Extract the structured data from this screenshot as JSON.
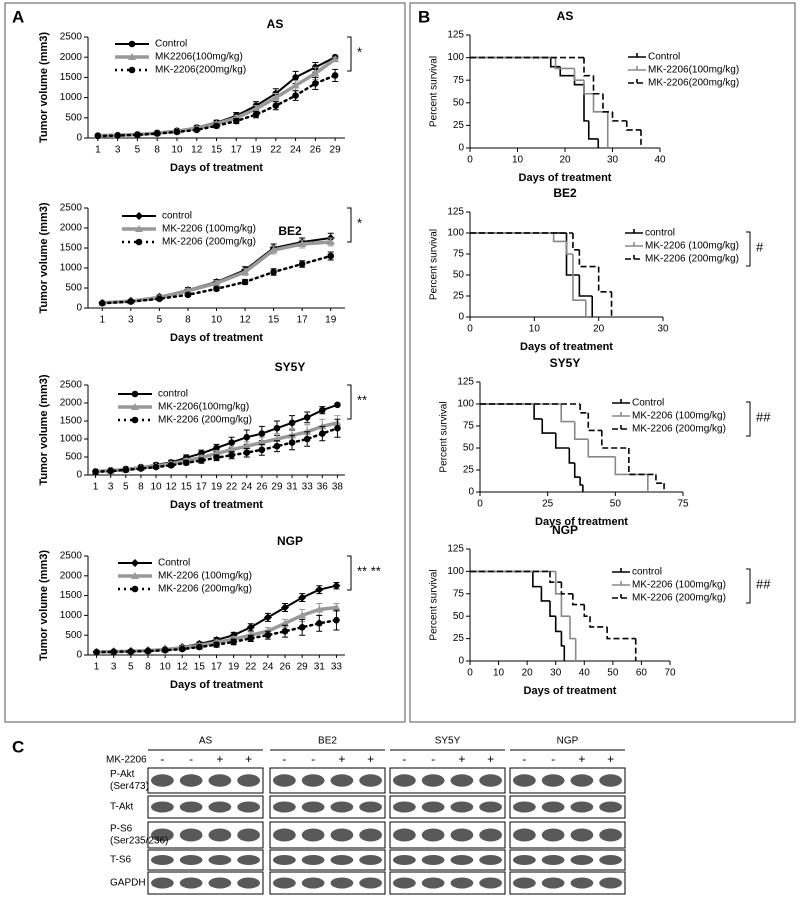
{
  "panel_labels": [
    "A",
    "B",
    "C"
  ],
  "chart_data": [
    {
      "type": "line",
      "title": "AS",
      "x_label": "Days of  treatment",
      "y_label": "Tumor volume (mm3)",
      "annotation": "*",
      "categories": [
        1,
        3,
        5,
        8,
        10,
        12,
        15,
        17,
        19,
        22,
        24,
        26,
        29
      ],
      "ylim": [
        0,
        2500
      ],
      "yticks": [
        0,
        500,
        1000,
        1500,
        2000,
        2500
      ],
      "series": [
        {
          "name": "Control",
          "color": "#000000",
          "style": "solid",
          "marker": "circle",
          "values": [
            60,
            70,
            90,
            130,
            180,
            260,
            380,
            550,
            800,
            1100,
            1500,
            1750,
            2000
          ],
          "errors": [
            10,
            10,
            15,
            20,
            25,
            40,
            60,
            80,
            100,
            120,
            150,
            120,
            30
          ]
        },
        {
          "name": "MK2206(100mg/kg)",
          "color": "#999999",
          "style": "thick",
          "marker": "triangle",
          "values": [
            60,
            70,
            85,
            120,
            170,
            240,
            350,
            500,
            720,
            1000,
            1300,
            1600,
            1950
          ],
          "errors": [
            10,
            10,
            15,
            20,
            25,
            35,
            50,
            60,
            80,
            100,
            120,
            150,
            50
          ]
        },
        {
          "name": "MK-2206(200mg/kg)",
          "color": "#000000",
          "style": "dotted",
          "marker": "circle",
          "values": [
            50,
            60,
            80,
            110,
            150,
            200,
            300,
            420,
            580,
            800,
            1050,
            1350,
            1550
          ],
          "errors": [
            10,
            10,
            15,
            20,
            25,
            30,
            50,
            60,
            80,
            100,
            120,
            150,
            150
          ]
        }
      ]
    },
    {
      "type": "line",
      "title": "BE2",
      "x_label": "Days of treatment",
      "y_label": "Tumor volume (mm3)",
      "annotation": "*",
      "categories": [
        1,
        3,
        5,
        8,
        10,
        12,
        15,
        17,
        19
      ],
      "ylim": [
        0,
        2500
      ],
      "yticks": [
        0,
        500,
        1000,
        1500,
        2000,
        2500
      ],
      "series": [
        {
          "name": "control",
          "color": "#000000",
          "style": "solid",
          "marker": "diamond",
          "values": [
            130,
            180,
            280,
            450,
            650,
            950,
            1500,
            1650,
            1750
          ],
          "errors": [
            20,
            30,
            40,
            60,
            60,
            80,
            100,
            100,
            120
          ]
        },
        {
          "name": "MK-2206 (100mg/kg)",
          "color": "#999999",
          "style": "thick",
          "marker": "triangle",
          "values": [
            130,
            170,
            260,
            430,
            620,
            900,
            1450,
            1600,
            1650
          ],
          "errors": [
            20,
            30,
            40,
            50,
            60,
            80,
            100,
            100,
            100
          ]
        },
        {
          "name": "MK-2206 (200mg/kg)",
          "color": "#000000",
          "style": "dotted",
          "marker": "circle",
          "values": [
            120,
            160,
            230,
            330,
            480,
            650,
            900,
            1100,
            1300
          ],
          "errors": [
            20,
            30,
            30,
            40,
            50,
            60,
            80,
            80,
            100
          ]
        }
      ]
    },
    {
      "type": "line",
      "title": "SY5Y",
      "x_label": "Days of treatment",
      "y_label": "Tumor volume (mm3)",
      "annotation": "**",
      "categories": [
        1,
        3,
        5,
        8,
        10,
        12,
        15,
        17,
        19,
        22,
        24,
        26,
        29,
        31,
        33,
        36,
        38
      ],
      "ylim": [
        0,
        2500
      ],
      "yticks": [
        0,
        500,
        1000,
        1500,
        2000,
        2500
      ],
      "series": [
        {
          "name": "control",
          "color": "#000000",
          "style": "solid",
          "marker": "circle",
          "values": [
            100,
            130,
            170,
            220,
            280,
            350,
            480,
            600,
            750,
            900,
            1050,
            1150,
            1300,
            1450,
            1600,
            1800,
            1950
          ],
          "errors": [
            20,
            30,
            30,
            40,
            50,
            60,
            80,
            90,
            100,
            150,
            200,
            200,
            200,
            200,
            150,
            100,
            30
          ]
        },
        {
          "name": "MK-2206(100mg/kg)",
          "color": "#999999",
          "style": "thick",
          "marker": "triangle",
          "values": [
            100,
            120,
            150,
            200,
            250,
            310,
            400,
            480,
            600,
            700,
            800,
            900,
            1000,
            1100,
            1200,
            1350,
            1450
          ],
          "errors": [
            20,
            20,
            30,
            30,
            40,
            50,
            60,
            70,
            80,
            100,
            120,
            150,
            150,
            200,
            200,
            200,
            200
          ]
        },
        {
          "name": "MK-2206 (200mg/kg)",
          "color": "#000000",
          "style": "dotted",
          "marker": "circle",
          "values": [
            90,
            110,
            140,
            180,
            220,
            270,
            340,
            400,
            480,
            550,
            620,
            700,
            800,
            900,
            1000,
            1150,
            1300
          ],
          "errors": [
            20,
            20,
            30,
            30,
            40,
            50,
            60,
            70,
            80,
            100,
            120,
            150,
            150,
            200,
            200,
            200,
            250
          ]
        }
      ]
    },
    {
      "type": "line",
      "title": "NGP",
      "x_label": "Days of  treatment",
      "y_label": "Tumor volume (mm3)",
      "annotation": "** **",
      "categories": [
        1,
        3,
        5,
        8,
        10,
        12,
        15,
        17,
        19,
        22,
        24,
        26,
        29,
        31,
        33
      ],
      "ylim": [
        0,
        2500
      ],
      "yticks": [
        0,
        500,
        1000,
        1500,
        2000,
        2500
      ],
      "series": [
        {
          "name": "Control",
          "color": "#000000",
          "style": "solid",
          "marker": "diamond",
          "values": [
            80,
            90,
            100,
            120,
            150,
            200,
            280,
            380,
            500,
            700,
            950,
            1200,
            1450,
            1650,
            1750
          ],
          "errors": [
            20,
            20,
            20,
            20,
            30,
            40,
            50,
            60,
            70,
            90,
            100,
            100,
            100,
            100,
            80
          ]
        },
        {
          "name": "MK-2206 (100mg/kg)",
          "color": "#999999",
          "style": "thick",
          "marker": "triangle",
          "values": [
            80,
            85,
            95,
            110,
            140,
            180,
            240,
            320,
            400,
            500,
            600,
            800,
            1000,
            1150,
            1200
          ],
          "errors": [
            20,
            20,
            20,
            20,
            30,
            40,
            50,
            60,
            70,
            80,
            90,
            100,
            150,
            150,
            100
          ]
        },
        {
          "name": "MK-2206 (200mg/kg)",
          "color": "#000000",
          "style": "dotted",
          "marker": "circle",
          "values": [
            70,
            80,
            90,
            100,
            120,
            150,
            200,
            260,
            330,
            420,
            500,
            600,
            700,
            800,
            880
          ],
          "errors": [
            20,
            20,
            20,
            20,
            30,
            40,
            50,
            60,
            70,
            80,
            100,
            150,
            200,
            200,
            250
          ]
        }
      ]
    },
    {
      "type": "step",
      "title": "AS",
      "x_label": "Days of treatment",
      "y_label": "Percent survival",
      "xlim": [
        0,
        40
      ],
      "xticks": [
        0,
        10,
        20,
        30,
        40
      ],
      "ylim": [
        0,
        125
      ],
      "yticks": [
        0,
        25,
        50,
        75,
        100,
        125
      ],
      "series": [
        {
          "name": "Control",
          "color": "#000000",
          "style": "solid",
          "x": [
            0,
            17,
            19,
            22,
            24,
            25,
            27
          ],
          "values": [
            100,
            90,
            80,
            70,
            30,
            10,
            0
          ]
        },
        {
          "name": "MK-2206(100mg/kg)",
          "color": "#888888",
          "style": "solid",
          "x": [
            0,
            18,
            22,
            24,
            26,
            29
          ],
          "values": [
            100,
            88,
            75,
            60,
            40,
            0
          ]
        },
        {
          "name": "MK-2206(200mg/kg)",
          "color": "#000000",
          "style": "dashed",
          "x": [
            0,
            24,
            26,
            28,
            30,
            33,
            36
          ],
          "values": [
            100,
            80,
            60,
            40,
            30,
            20,
            0
          ]
        }
      ]
    },
    {
      "type": "step",
      "title": "BE2",
      "x_label": "Days of treatment",
      "y_label": "Percent survival",
      "annotation": "#",
      "xlim": [
        0,
        30
      ],
      "xticks": [
        0,
        10,
        20,
        30
      ],
      "ylim": [
        0,
        125
      ],
      "yticks": [
        0,
        25,
        50,
        75,
        100,
        125
      ],
      "series": [
        {
          "name": "control",
          "color": "#000000",
          "style": "solid",
          "x": [
            0,
            15,
            17,
            19
          ],
          "values": [
            100,
            50,
            25,
            0
          ]
        },
        {
          "name": "MK-2206 (100mg/kg)",
          "color": "#888888",
          "style": "solid",
          "x": [
            0,
            13,
            15,
            16,
            18
          ],
          "values": [
            100,
            90,
            75,
            20,
            0
          ]
        },
        {
          "name": "MK-2206 (200mg/kg)",
          "color": "#000000",
          "style": "dashed",
          "x": [
            0,
            16,
            17,
            20,
            22
          ],
          "values": [
            100,
            80,
            60,
            30,
            0
          ]
        }
      ]
    },
    {
      "type": "step",
      "title": "SY5Y",
      "x_label": "Days of treatment",
      "y_label": "Percent survival",
      "annotation": "##",
      "xlim": [
        0,
        75
      ],
      "xticks": [
        0,
        25,
        50,
        75
      ],
      "ylim": [
        0,
        125
      ],
      "yticks": [
        0,
        25,
        50,
        75,
        100,
        125
      ],
      "series": [
        {
          "name": "Control",
          "color": "#000000",
          "style": "solid",
          "x": [
            0,
            20,
            23,
            28,
            33,
            35,
            37,
            38
          ],
          "values": [
            100,
            83,
            67,
            50,
            33,
            17,
            8,
            0
          ]
        },
        {
          "name": "MK-2206 (100mg/kg)",
          "color": "#888888",
          "style": "solid",
          "x": [
            0,
            30,
            35,
            40,
            50,
            62
          ],
          "values": [
            100,
            80,
            60,
            40,
            20,
            0
          ]
        },
        {
          "name": "MK-2206 (200mg/kg)",
          "color": "#000000",
          "style": "dashed",
          "x": [
            0,
            37,
            40,
            45,
            55,
            65,
            68
          ],
          "values": [
            100,
            90,
            70,
            50,
            20,
            10,
            0
          ]
        }
      ]
    },
    {
      "type": "step",
      "title": "NGP",
      "x_label": "Days of treatment",
      "y_label": "Percent survival",
      "annotation": "##",
      "xlim": [
        0,
        70
      ],
      "xticks": [
        0,
        10,
        20,
        30,
        40,
        50,
        60,
        70
      ],
      "ylim": [
        0,
        125
      ],
      "yticks": [
        0,
        25,
        50,
        75,
        100,
        125
      ],
      "series": [
        {
          "name": "control",
          "color": "#000000",
          "style": "solid",
          "x": [
            0,
            22,
            25,
            28,
            30,
            32,
            33
          ],
          "values": [
            100,
            83,
            67,
            50,
            33,
            17,
            0
          ]
        },
        {
          "name": "MK-2206 (100mg/kg)",
          "color": "#888888",
          "style": "solid",
          "x": [
            0,
            30,
            32,
            35,
            37
          ],
          "values": [
            100,
            75,
            50,
            25,
            0
          ]
        },
        {
          "name": "MK-2206 (200mg/kg)",
          "color": "#000000",
          "style": "dashed",
          "x": [
            0,
            28,
            32,
            36,
            40,
            42,
            48,
            58
          ],
          "values": [
            100,
            88,
            75,
            63,
            50,
            38,
            25,
            0
          ]
        }
      ]
    }
  ],
  "western_blot": {
    "treatment_label": "MK-2206",
    "groups": [
      "AS",
      "BE2",
      "SY5Y",
      "NGP"
    ],
    "lanes": [
      "-",
      "-",
      "+",
      "+"
    ],
    "rows": [
      [
        "P-Akt",
        "(Ser473)"
      ],
      [
        "T-Akt"
      ],
      [
        "P-S6",
        "(Ser235/236)"
      ],
      [
        "T-S6"
      ],
      [
        "GAPDH"
      ]
    ]
  }
}
